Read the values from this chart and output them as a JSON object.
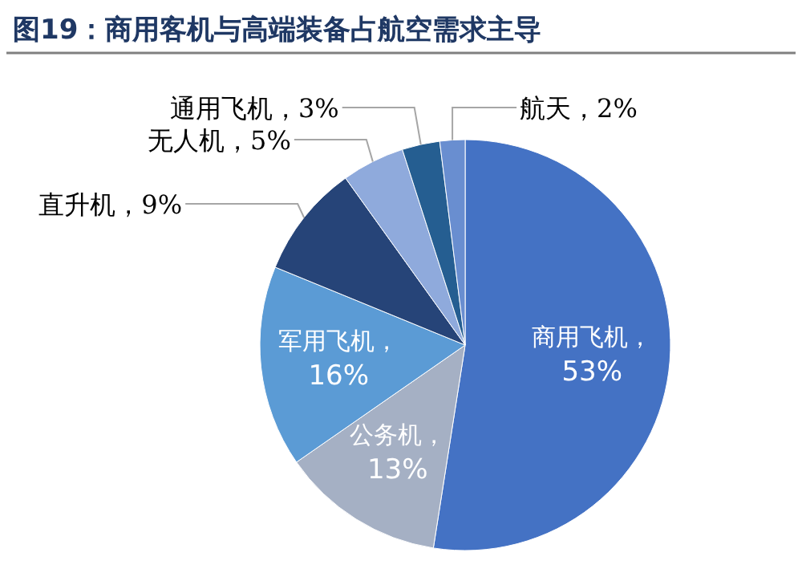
{
  "chart_data": {
    "type": "pie",
    "title": "图19：商用客机与高端装备占航空需求主导",
    "categories": [
      "商用飞机",
      "公务机",
      "军用飞机",
      "直升机",
      "无人机",
      "通用飞机",
      "航天"
    ],
    "values": [
      53,
      13,
      16,
      9,
      5,
      3,
      2
    ],
    "value_labels": [
      "，53%",
      "，13%",
      "，16%",
      "，9%",
      "，5%",
      "，3%",
      "，2%"
    ],
    "colors": [
      "#4472c4",
      "#a5b0c4",
      "#5b9bd5",
      "#264478",
      "#8faadc",
      "#255e91",
      "#698ed0"
    ],
    "legend": false
  }
}
